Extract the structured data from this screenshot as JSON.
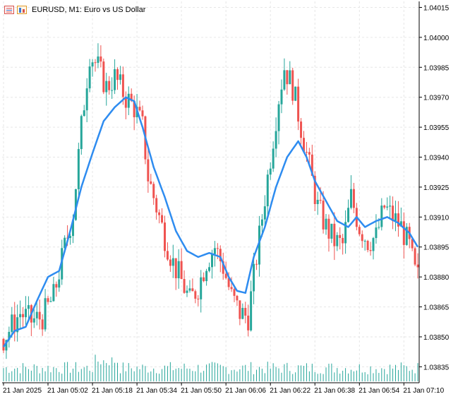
{
  "header": {
    "symbol": "EURUSD",
    "timeframe": "M1",
    "description": "Euro vs US Dollar",
    "title_text": "EURUSD, M1:  Euro vs US Dollar",
    "icons": [
      "trade-panel-icon",
      "depth-of-market-icon"
    ]
  },
  "colors": {
    "background": "#ffffff",
    "grid": "#e6e6e6",
    "bull": "#26a69a",
    "bear": "#ef5350",
    "ma_line": "#2e8cf0",
    "volume": "#26a69a",
    "axis_text": "#000000",
    "axis_line": "#000000"
  },
  "chart_data": {
    "type": "candlestick",
    "symbol": "EURUSD",
    "timeframe": "M1",
    "y_ticks": [
      "1.04015",
      "1.04000",
      "1.03985",
      "1.03970",
      "1.03955",
      "1.03940",
      "1.03925",
      "1.03910",
      "1.03895",
      "1.03880",
      "1.03865",
      "1.03850",
      "1.03835"
    ],
    "y_tick_values": [
      1.04015,
      1.04,
      1.03985,
      1.0397,
      1.03955,
      1.0394,
      1.03925,
      1.0391,
      1.03895,
      1.0388,
      1.03865,
      1.0385,
      1.03835
    ],
    "x_ticks": [
      "21 Jan 2025",
      "21 Jan 05:02",
      "21 Jan 05:18",
      "21 Jan 05:34",
      "21 Jan 05:50",
      "21 Jan 06:06",
      "21 Jan 06:22",
      "21 Jan 06:38",
      "21 Jan 06:54",
      "21 Jan 07:10"
    ],
    "ylim": [
      1.03827,
      1.04018
    ],
    "indicator": "Moving Average",
    "grid": true,
    "price_path": [
      [
        0,
        1.03849
      ],
      [
        6,
        1.03862
      ],
      [
        10,
        1.03858
      ],
      [
        14,
        1.0386
      ],
      [
        18,
        1.0387
      ],
      [
        22,
        1.03895
      ],
      [
        25,
        1.03912
      ],
      [
        28,
        1.03955
      ],
      [
        31,
        1.03992
      ],
      [
        34,
        1.03985
      ],
      [
        37,
        1.03975
      ],
      [
        40,
        1.0398
      ],
      [
        44,
        1.0397
      ],
      [
        47,
        1.03965
      ],
      [
        50,
        1.03955
      ],
      [
        52,
        1.0393
      ],
      [
        55,
        1.03915
      ],
      [
        58,
        1.039
      ],
      [
        61,
        1.03887
      ],
      [
        64,
        1.03878
      ],
      [
        67,
        1.03868
      ],
      [
        70,
        1.03875
      ],
      [
        73,
        1.03888
      ],
      [
        76,
        1.03895
      ],
      [
        79,
        1.03885
      ],
      [
        82,
        1.0387
      ],
      [
        85,
        1.03862
      ],
      [
        88,
        1.0386
      ],
      [
        90,
        1.0388
      ],
      [
        93,
        1.0391
      ],
      [
        96,
        1.0394
      ],
      [
        99,
        1.0397
      ],
      [
        101,
        1.03985
      ],
      [
        104,
        1.03975
      ],
      [
        107,
        1.03955
      ],
      [
        110,
        1.03935
      ],
      [
        113,
        1.03915
      ],
      [
        116,
        1.03905
      ],
      [
        119,
        1.03898
      ],
      [
        122,
        1.03896
      ],
      [
        125,
        1.0392
      ],
      [
        128,
        1.03905
      ],
      [
        131,
        1.03898
      ],
      [
        134,
        1.039
      ],
      [
        137,
        1.03915
      ],
      [
        140,
        1.0391
      ],
      [
        143,
        1.03905
      ],
      [
        146,
        1.03895
      ],
      [
        148,
        1.03882
      ],
      [
        149,
        1.0388
      ]
    ],
    "ma_path": [
      [
        0,
        1.03845
      ],
      [
        4,
        1.03853
      ],
      [
        8,
        1.03855
      ],
      [
        12,
        1.03868
      ],
      [
        16,
        1.0388
      ],
      [
        20,
        1.03883
      ],
      [
        24,
        1.03903
      ],
      [
        28,
        1.03925
      ],
      [
        32,
        1.03942
      ],
      [
        36,
        1.03958
      ],
      [
        40,
        1.03965
      ],
      [
        44,
        1.0397
      ],
      [
        47,
        1.03968
      ],
      [
        50,
        1.03955
      ],
      [
        54,
        1.03935
      ],
      [
        58,
        1.0392
      ],
      [
        62,
        1.03903
      ],
      [
        66,
        1.03893
      ],
      [
        70,
        1.0389
      ],
      [
        74,
        1.03892
      ],
      [
        78,
        1.0389
      ],
      [
        81,
        1.0388
      ],
      [
        84,
        1.03873
      ],
      [
        87,
        1.03872
      ],
      [
        90,
        1.0389
      ],
      [
        94,
        1.03905
      ],
      [
        98,
        1.03925
      ],
      [
        102,
        1.0394
      ],
      [
        106,
        1.03948
      ],
      [
        109,
        1.0394
      ],
      [
        112,
        1.03928
      ],
      [
        116,
        1.03918
      ],
      [
        120,
        1.03908
      ],
      [
        124,
        1.03905
      ],
      [
        127,
        1.0391
      ],
      [
        130,
        1.03905
      ],
      [
        134,
        1.03908
      ],
      [
        138,
        1.0391
      ],
      [
        142,
        1.03907
      ],
      [
        146,
        1.03902
      ],
      [
        149,
        1.03895
      ]
    ]
  }
}
